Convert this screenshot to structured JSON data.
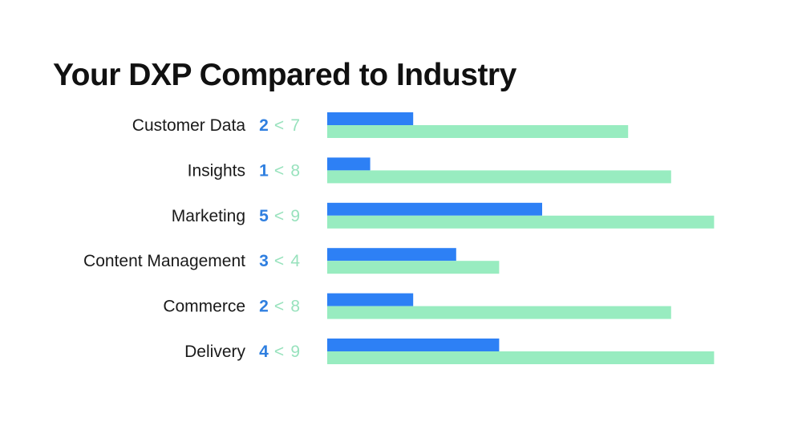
{
  "chart_data": {
    "type": "bar",
    "orientation": "horizontal",
    "title": "Your DXP Compared to Industry",
    "categories": [
      "Customer Data",
      "Insights",
      "Marketing",
      "Content Management",
      "Commerce",
      "Delivery"
    ],
    "series": [
      {
        "name": "Your DXP",
        "values": [
          2,
          1,
          5,
          3,
          2,
          4
        ],
        "color": "#2d80f5",
        "label_color": "#2f7fe0"
      },
      {
        "name": "Industry",
        "values": [
          7,
          8,
          9,
          4,
          8,
          9
        ],
        "color": "#98ecc0",
        "label_color": "#98e2bd"
      }
    ],
    "comparison_symbol": "<",
    "xlim": [
      0,
      9
    ],
    "grid": false,
    "xlabel": "",
    "ylabel": ""
  }
}
